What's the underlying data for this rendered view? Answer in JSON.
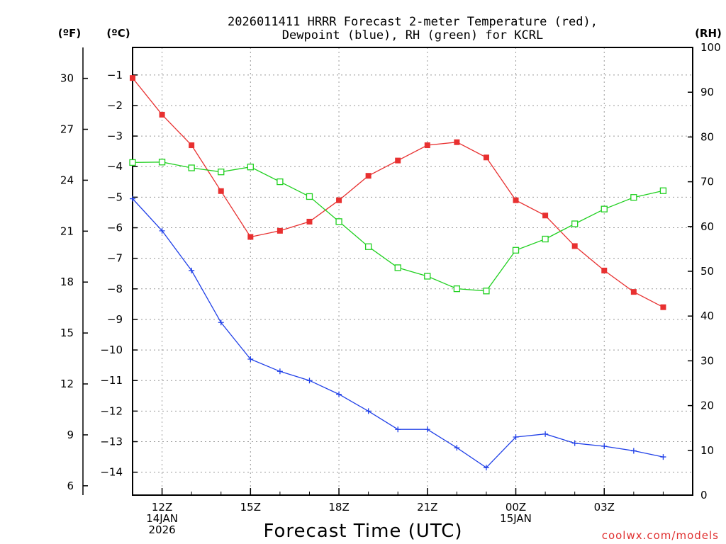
{
  "chart_data": {
    "type": "line",
    "title_line1": "2026011411 HRRR Forecast 2-meter Temperature (red),",
    "title_line2": "Dewpoint (blue), RH (green) for KCRL",
    "units": {
      "fahrenheit": "(ºF)",
      "celsius": "(ºC)",
      "rh": "(RH)"
    },
    "xlabel": "Forecast Time (UTC)",
    "credit": "coolwx.com/models",
    "x_hours": [
      11,
      12,
      13,
      14,
      15,
      16,
      17,
      18,
      19,
      20,
      21,
      22,
      23,
      24,
      25,
      26,
      27,
      28,
      29,
      30
    ],
    "x_range": [
      11,
      30
    ],
    "x_ticks": [
      {
        "hour": 12,
        "lines": [
          "12Z",
          "14JAN",
          "2026"
        ]
      },
      {
        "hour": 15,
        "lines": [
          "15Z"
        ]
      },
      {
        "hour": 18,
        "lines": [
          "18Z"
        ]
      },
      {
        "hour": 21,
        "lines": [
          "21Z"
        ]
      },
      {
        "hour": 24,
        "lines": [
          "00Z",
          "15JAN"
        ]
      },
      {
        "hour": 27,
        "lines": [
          "03Z"
        ]
      }
    ],
    "celsius_range": [
      -14.75,
      -0.1
    ],
    "celsius_ticks": [
      "-1",
      "-2",
      "-3",
      "-4",
      "-5",
      "-6",
      "-7",
      "-8",
      "-9",
      "-10",
      "-11",
      "-12",
      "-13",
      "-14"
    ],
    "fahrenheit_ticks": [
      "30",
      "27",
      "24",
      "21",
      "18",
      "15",
      "12",
      "9",
      "6"
    ],
    "rh_range": [
      0,
      100
    ],
    "rh_ticks": [
      "100",
      "90",
      "80",
      "70",
      "60",
      "50",
      "40",
      "30",
      "20",
      "10",
      "0"
    ],
    "series": [
      {
        "name": "Temperature",
        "axis": "celsius",
        "color": "#e83030",
        "marker": "filled-square",
        "values": [
          -1.1,
          -2.3,
          -3.3,
          -4.8,
          -6.3,
          -6.1,
          -5.8,
          -5.1,
          -4.3,
          -3.8,
          -3.3,
          -3.2,
          -3.7,
          -5.1,
          -5.6,
          -6.6,
          -7.4,
          -8.1,
          -8.6
        ]
      },
      {
        "name": "Dewpoint",
        "axis": "celsius",
        "color": "#2040e8",
        "marker": "plus",
        "values": [
          -5.05,
          -6.1,
          -7.4,
          -9.1,
          -10.3,
          -10.7,
          -11.0,
          -11.45,
          -12.0,
          -12.6,
          -12.6,
          -13.2,
          -13.85,
          -12.85,
          -12.75,
          -13.05,
          -13.15,
          -13.3,
          -13.5
        ]
      },
      {
        "name": "RH",
        "axis": "rh",
        "color": "#20d020",
        "marker": "open-square",
        "values": [
          74.3,
          74.4,
          73.1,
          72.2,
          73.3,
          70.0,
          66.7,
          61.1,
          55.5,
          50.8,
          48.9,
          46.1,
          45.6,
          54.7,
          57.2,
          60.6,
          63.9,
          66.5,
          68.0
        ]
      }
    ]
  }
}
